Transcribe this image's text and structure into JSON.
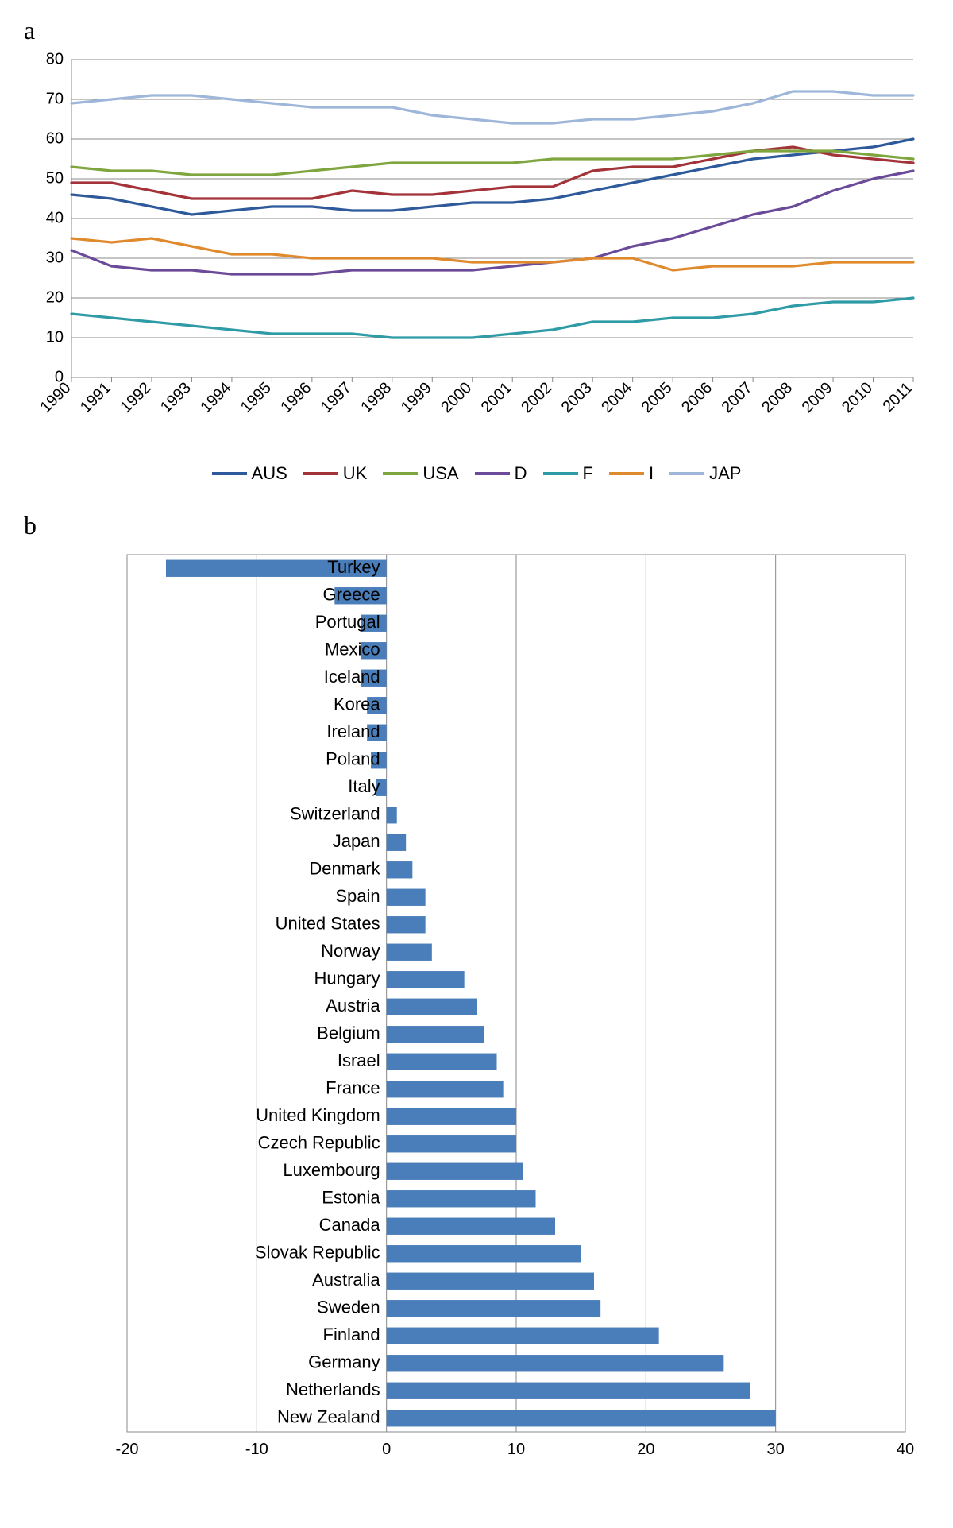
{
  "panelA": {
    "label": "a",
    "type": "line",
    "x_labels": [
      "1990",
      "1991",
      "1992",
      "1993",
      "1994",
      "1995",
      "1996",
      "1997",
      "1998",
      "1999",
      "2000",
      "2001",
      "2002",
      "2003",
      "2004",
      "2005",
      "2006",
      "2007",
      "2008",
      "2009",
      "2010",
      "2011"
    ],
    "ylim": [
      0,
      80
    ],
    "ytick_step": 10,
    "yticks": [
      0,
      10,
      20,
      30,
      40,
      50,
      60,
      70,
      80
    ],
    "background_color": "#ffffff",
    "plot_border_color": "#888888",
    "grid_color": "#888888",
    "line_width": 3.2,
    "x_label_fontsize": 20,
    "x_label_rotation": -45,
    "series": [
      {
        "name": "AUS",
        "color": "#2e5a9c",
        "values": [
          46,
          45,
          43,
          41,
          42,
          43,
          43,
          42,
          42,
          43,
          44,
          44,
          45,
          47,
          49,
          51,
          53,
          55,
          56,
          57,
          58,
          60
        ]
      },
      {
        "name": "UK",
        "color": "#a33338",
        "values": [
          49,
          49,
          47,
          45,
          45,
          45,
          45,
          47,
          46,
          46,
          47,
          48,
          48,
          52,
          53,
          53,
          55,
          57,
          58,
          56,
          55,
          54
        ]
      },
      {
        "name": "USA",
        "color": "#7fa53f",
        "values": [
          53,
          52,
          52,
          51,
          51,
          51,
          52,
          53,
          54,
          54,
          54,
          54,
          55,
          55,
          55,
          55,
          56,
          57,
          57,
          57,
          56,
          55
        ]
      },
      {
        "name": "D",
        "color": "#6a4a99",
        "values": [
          32,
          28,
          27,
          27,
          26,
          26,
          26,
          27,
          27,
          27,
          27,
          28,
          29,
          30,
          33,
          35,
          38,
          41,
          43,
          47,
          50,
          52
        ]
      },
      {
        "name": "F",
        "color": "#2f9ba6",
        "values": [
          16,
          15,
          14,
          13,
          12,
          11,
          11,
          11,
          10,
          10,
          10,
          11,
          12,
          14,
          14,
          15,
          15,
          16,
          18,
          19,
          19,
          20
        ]
      },
      {
        "name": "I",
        "color": "#e08a2e",
        "values": [
          35,
          34,
          35,
          33,
          31,
          31,
          30,
          30,
          30,
          30,
          29,
          29,
          29,
          30,
          30,
          27,
          28,
          28,
          28,
          29,
          29,
          29
        ]
      },
      {
        "name": "JAP",
        "color": "#9db6d9",
        "values": [
          69,
          70,
          71,
          71,
          70,
          69,
          68,
          68,
          68,
          66,
          65,
          64,
          64,
          65,
          65,
          66,
          67,
          69,
          72,
          72,
          71,
          71
        ]
      }
    ]
  },
  "panelB": {
    "label": "b",
    "type": "bar_horizontal",
    "xlim": [
      -20,
      40
    ],
    "xtick_step": 10,
    "xticks": [
      -20,
      -10,
      0,
      10,
      20,
      30,
      40
    ],
    "bar_color": "#4a7ebb",
    "plot_border_color": "#888888",
    "grid_color": "#888888",
    "background_color": "#ffffff",
    "bar_height_ratio": 0.62,
    "label_fontsize": 22,
    "tick_fontsize": 20,
    "items": [
      {
        "label": "Turkey",
        "value": -17
      },
      {
        "label": "Greece",
        "value": -4
      },
      {
        "label": "Portugal",
        "value": -2
      },
      {
        "label": "Mexico",
        "value": -2
      },
      {
        "label": "Iceland",
        "value": -2
      },
      {
        "label": "Korea",
        "value": -1.5
      },
      {
        "label": "Ireland",
        "value": -1.5
      },
      {
        "label": "Poland",
        "value": -1.2
      },
      {
        "label": "Italy",
        "value": -0.8
      },
      {
        "label": "Switzerland",
        "value": 0.8
      },
      {
        "label": "Japan",
        "value": 1.5
      },
      {
        "label": "Denmark",
        "value": 2
      },
      {
        "label": "Spain",
        "value": 3
      },
      {
        "label": "United States",
        "value": 3
      },
      {
        "label": "Norway",
        "value": 3.5
      },
      {
        "label": "Hungary",
        "value": 6
      },
      {
        "label": "Austria",
        "value": 7
      },
      {
        "label": "Belgium",
        "value": 7.5
      },
      {
        "label": "Israel",
        "value": 8.5
      },
      {
        "label": "France",
        "value": 9
      },
      {
        "label": "United Kingdom",
        "value": 10
      },
      {
        "label": "Czech Republic",
        "value": 10
      },
      {
        "label": "Luxembourg",
        "value": 10.5
      },
      {
        "label": "Estonia",
        "value": 11.5
      },
      {
        "label": "Canada",
        "value": 13
      },
      {
        "label": "Slovak Republic",
        "value": 15
      },
      {
        "label": "Australia",
        "value": 16
      },
      {
        "label": "Sweden",
        "value": 16.5
      },
      {
        "label": "Finland",
        "value": 21
      },
      {
        "label": "Germany",
        "value": 26
      },
      {
        "label": "Netherlands",
        "value": 28
      },
      {
        "label": "New Zealand",
        "value": 30
      }
    ]
  }
}
